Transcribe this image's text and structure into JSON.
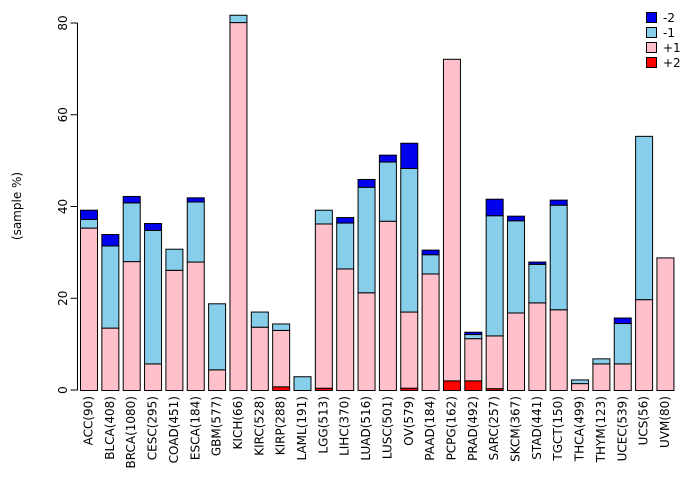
{
  "chart_data": {
    "type": "bar",
    "stacked": true,
    "title": "",
    "xlabel": "",
    "ylabel": "(sample %)",
    "ylim": [
      0,
      80
    ],
    "yticks": [
      0,
      20,
      40,
      60,
      80
    ],
    "grid": false,
    "legend_position": "top-right",
    "legend_order": [
      "-2",
      "-1",
      "+1",
      "+2"
    ],
    "stack_order_bottom_to_top": [
      "+2",
      "+1",
      "-1",
      "-2"
    ],
    "colors": {
      "-2": "#0000EE",
      "-1": "#87CEEB",
      "+1": "#FFC0CB",
      "+2": "#FF0000"
    },
    "bar_border_color": "#000000",
    "categories": [
      "ACC(90)",
      "BLCA(408)",
      "BRCA(1080)",
      "CESC(295)",
      "COAD(451)",
      "ESCA(184)",
      "GBM(577)",
      "KICH(66)",
      "KIRC(528)",
      "KIRP(288)",
      "LAML(191)",
      "LGG(513)",
      "LIHC(370)",
      "LUAD(516)",
      "LUSC(501)",
      "OV(579)",
      "PAAD(184)",
      "PCPG(162)",
      "PRAD(492)",
      "SARC(257)",
      "SKCM(367)",
      "STAD(441)",
      "TGCT(150)",
      "THCA(499)",
      "THYM(123)",
      "UCEC(539)",
      "UCS(56)",
      "UVM(80)"
    ],
    "series": [
      {
        "name": "-2",
        "values": [
          2.0,
          2.5,
          1.4,
          1.5,
          0,
          0.9,
          0,
          0,
          0,
          0,
          0,
          0,
          1.2,
          1.7,
          1.5,
          5.5,
          1.0,
          0,
          0.5,
          3.6,
          1.0,
          0.5,
          1.1,
          0,
          0,
          1.2,
          0,
          0
        ]
      },
      {
        "name": "-1",
        "values": [
          1.9,
          17.9,
          12.8,
          29.1,
          4.6,
          13.1,
          14.4,
          1.6,
          3.3,
          1.4,
          3.0,
          3.0,
          10.0,
          23.0,
          12.9,
          31.3,
          4.2,
          0,
          0.9,
          26.2,
          20.1,
          8.4,
          22.8,
          0.8,
          1.1,
          8.8,
          35.6,
          0
        ]
      },
      {
        "name": "+1",
        "values": [
          35.4,
          13.6,
          28.1,
          5.8,
          26.2,
          28.0,
          4.5,
          80.2,
          13.8,
          12.3,
          0,
          35.8,
          26.5,
          21.3,
          36.9,
          16.6,
          25.4,
          70.1,
          9.2,
          11.5,
          16.9,
          19.1,
          17.6,
          1.5,
          5.8,
          5.8,
          19.8,
          28.9
        ]
      },
      {
        "name": "+2",
        "values": [
          0,
          0,
          0,
          0,
          0,
          0,
          0,
          0,
          0,
          0.8,
          0,
          0.5,
          0,
          0,
          0,
          0.5,
          0,
          2.1,
          2.1,
          0.4,
          0,
          0,
          0,
          0,
          0,
          0,
          0,
          0
        ]
      }
    ]
  }
}
